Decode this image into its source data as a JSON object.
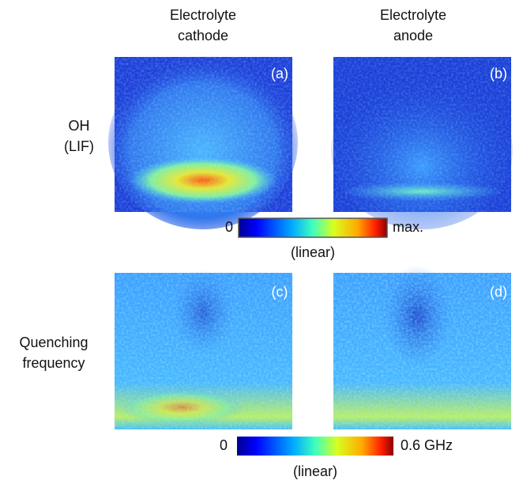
{
  "columns": [
    {
      "lines": [
        "Electrolyte",
        "cathode"
      ]
    },
    {
      "lines": [
        "Electrolyte",
        "anode"
      ]
    }
  ],
  "rows": [
    {
      "lines": [
        "OH",
        "(LIF)"
      ]
    },
    {
      "lines": [
        "Quenching",
        "frequency"
      ]
    }
  ],
  "panels": [
    {
      "label": "(a)"
    },
    {
      "label": "(b)"
    },
    {
      "label": "(c)"
    },
    {
      "label": "(d)"
    }
  ],
  "colorbars": [
    {
      "min": "0",
      "max": "max.",
      "scale": "(linear)"
    },
    {
      "min": "0",
      "max": "0.6 GHz",
      "scale": "(linear)"
    }
  ]
}
